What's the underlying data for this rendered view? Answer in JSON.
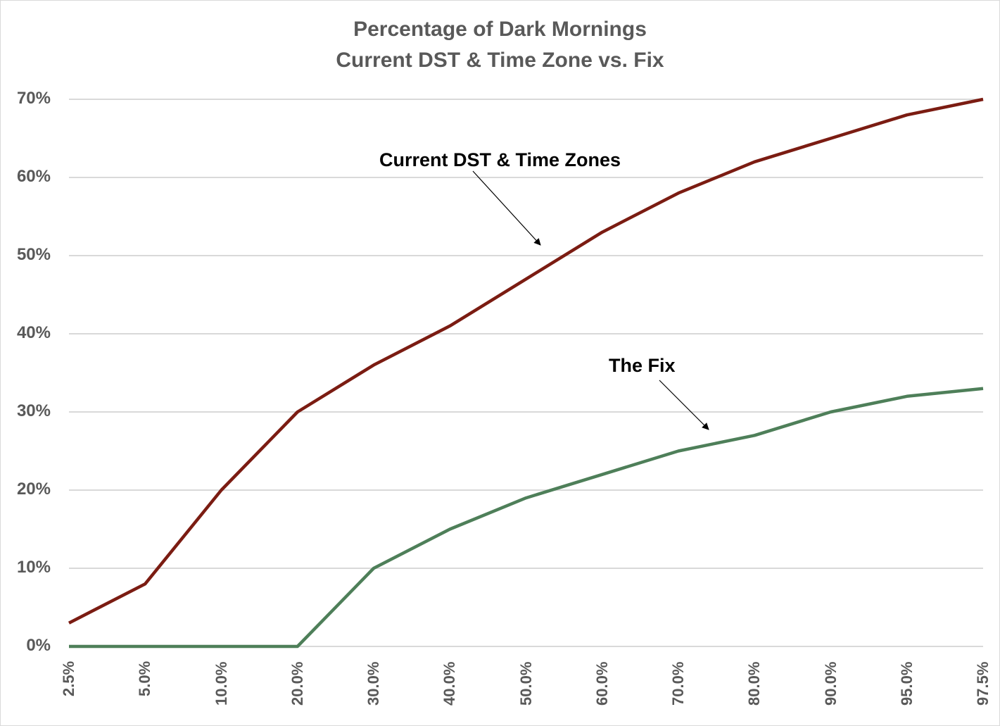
{
  "chart_data": {
    "type": "line",
    "title": "Percentage of Dark Mornings",
    "subtitle": "Current DST & Time Zone vs. Fix",
    "xlabel": "",
    "ylabel": "",
    "categories": [
      "2.5%",
      "5.0%",
      "10.0%",
      "20.0%",
      "30.0%",
      "40.0%",
      "50.0%",
      "60.0%",
      "70.0%",
      "80.0%",
      "90.0%",
      "95.0%",
      "97.5%"
    ],
    "series": [
      {
        "name": "Current DST & Time Zones",
        "color": "#7b1c12",
        "values": [
          3,
          8,
          20,
          30,
          36,
          41,
          47,
          53,
          58,
          62,
          65,
          68,
          70
        ]
      },
      {
        "name": "The Fix",
        "color": "#4e7f59",
        "values": [
          0,
          0,
          0,
          0,
          10,
          15,
          19,
          22,
          25,
          27,
          30,
          32,
          33
        ]
      }
    ],
    "yticks": [
      "0%",
      "10%",
      "20%",
      "30%",
      "40%",
      "50%",
      "60%",
      "70%"
    ],
    "ylim": [
      0,
      70
    ],
    "grid": true,
    "legend": "none",
    "annotations": [
      {
        "text": "Current DST & Time Zones",
        "arrow_to_series": "Current DST & Time Zones"
      },
      {
        "text": "The Fix",
        "arrow_to_series": "The Fix"
      }
    ]
  },
  "labels": {
    "title_line1": "Percentage of Dark Mornings",
    "title_line2": "Current DST & Time Zone vs. Fix",
    "annot_current": "Current DST & Time Zones",
    "annot_fix": "The Fix"
  }
}
